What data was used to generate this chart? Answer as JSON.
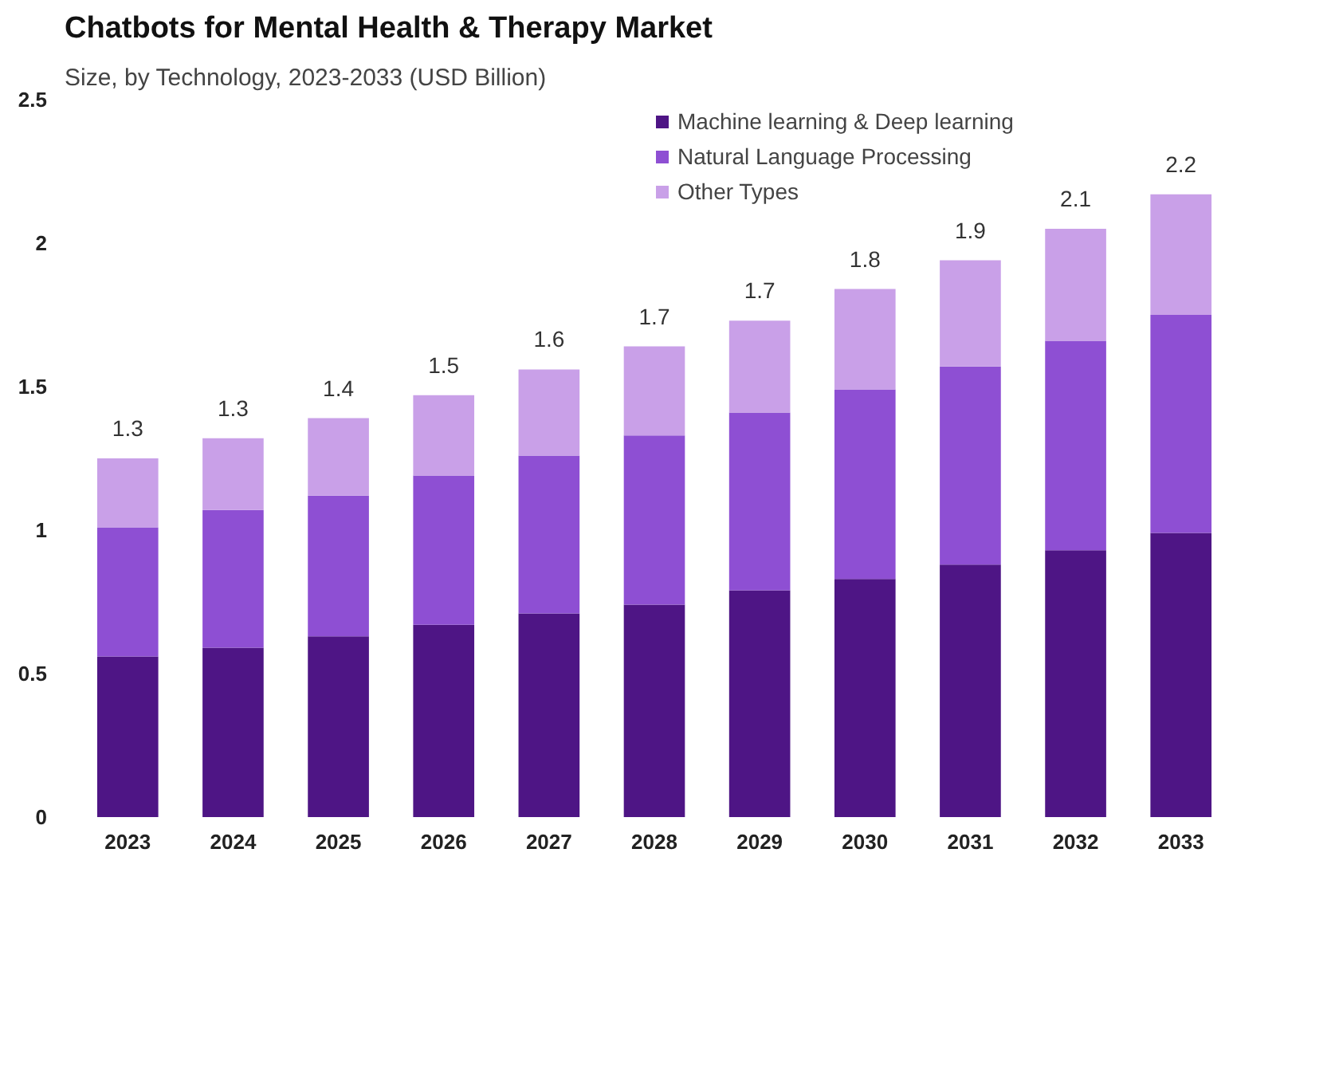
{
  "chart_data": {
    "type": "bar",
    "title": "Chatbots for Mental Health & Therapy Market",
    "subtitle": "Size, by Technology, 2023-2033 (USD Billion)",
    "categories": [
      "2023",
      "2024",
      "2025",
      "2026",
      "2027",
      "2028",
      "2029",
      "2030",
      "2031",
      "2032",
      "2033"
    ],
    "stacked": true,
    "series": [
      {
        "name": "Machine learning & Deep learning",
        "color": "#4e1585",
        "values": [
          0.56,
          0.59,
          0.63,
          0.67,
          0.71,
          0.74,
          0.79,
          0.83,
          0.88,
          0.93,
          0.99
        ]
      },
      {
        "name": "Natural Language Processing",
        "color": "#8e4fd3",
        "values": [
          0.45,
          0.48,
          0.49,
          0.52,
          0.55,
          0.59,
          0.62,
          0.66,
          0.69,
          0.73,
          0.76
        ]
      },
      {
        "name": "Other Types",
        "color": "#c9a0e8",
        "values": [
          0.24,
          0.25,
          0.27,
          0.28,
          0.3,
          0.31,
          0.32,
          0.35,
          0.37,
          0.39,
          0.42
        ]
      }
    ],
    "totals": [
      "1.3",
      "1.3",
      "1.4",
      "1.5",
      "1.6",
      "1.7",
      "1.7",
      "1.8",
      "1.9",
      "2.1",
      "2.2"
    ],
    "ylim": [
      0,
      2.5
    ],
    "yticks": [
      0,
      0.5,
      1,
      1.5,
      2,
      2.5
    ],
    "grid": false,
    "legend": "top right"
  }
}
